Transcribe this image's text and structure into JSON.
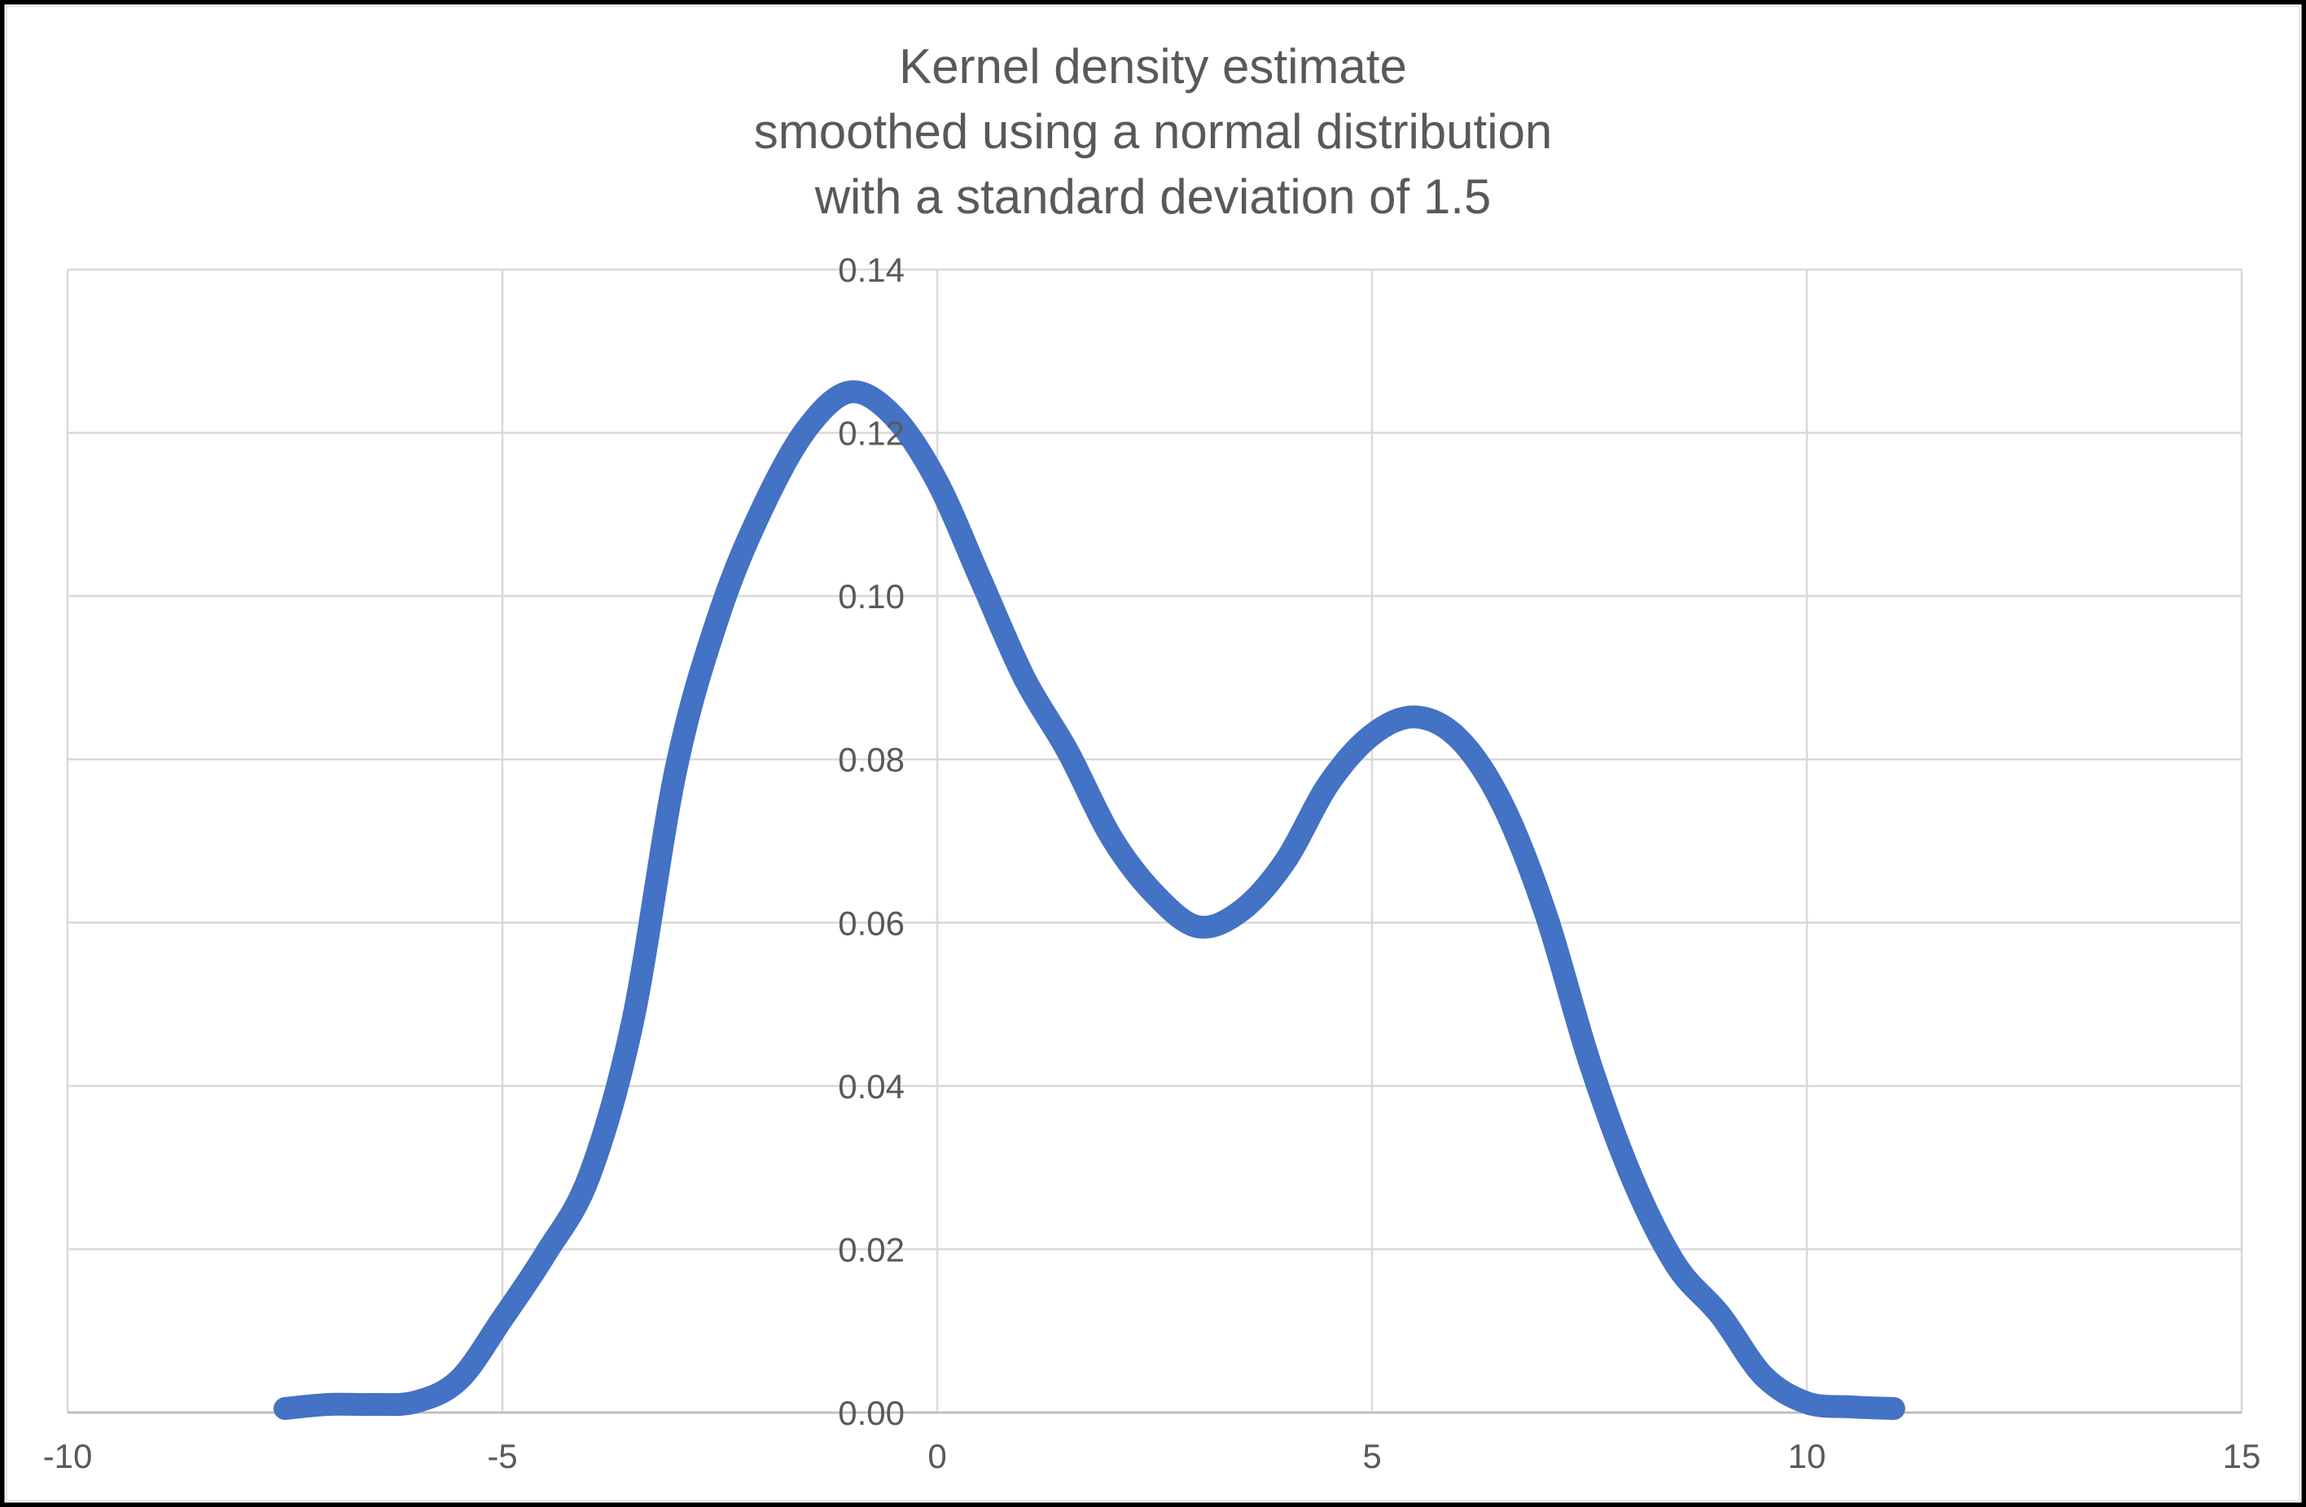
{
  "title": {
    "lines": [
      "Kernel density estimate",
      "smoothed using a normal distribution",
      "with a standard deviation of 1.5"
    ],
    "color": "#595959"
  },
  "chart_data": {
    "type": "line",
    "title": "Kernel density estimate smoothed using a normal distribution with a standard deviation of 1.5",
    "xlabel": "",
    "ylabel": "",
    "xlim": [
      -10,
      15
    ],
    "ylim": [
      0,
      0.14
    ],
    "x_ticks": [
      -10,
      -5,
      0,
      5,
      10,
      15
    ],
    "x_tick_labels": [
      "-10",
      "-5",
      "0",
      "5",
      "10",
      "15"
    ],
    "y_ticks": [
      0,
      0.02,
      0.04,
      0.06,
      0.08,
      0.1,
      0.12,
      0.14
    ],
    "y_tick_labels": [
      "0.00",
      "0.02",
      "0.04",
      "0.06",
      "0.08",
      "0.10",
      "0.12",
      "0.14"
    ],
    "grid": true,
    "legend": false,
    "series": [
      {
        "name": "Kernel density estimate",
        "color": "#4472C4",
        "stroke_width": 28,
        "points": [
          [
            -7.5,
            0.0005
          ],
          [
            -7.0,
            0.001
          ],
          [
            -6.5,
            0.001
          ],
          [
            -6.0,
            0.0013
          ],
          [
            -5.5,
            0.004
          ],
          [
            -5.0,
            0.0115
          ],
          [
            -4.5,
            0.0195
          ],
          [
            -4.0,
            0.029
          ],
          [
            -3.5,
            0.048
          ],
          [
            -3.0,
            0.079
          ],
          [
            -2.5,
            0.098
          ],
          [
            -2.0,
            0.111
          ],
          [
            -1.5,
            0.1205
          ],
          [
            -1.0,
            0.125
          ],
          [
            -0.5,
            0.122
          ],
          [
            0.0,
            0.114
          ],
          [
            0.5,
            0.102
          ],
          [
            1.0,
            0.09
          ],
          [
            1.5,
            0.081
          ],
          [
            2.0,
            0.0705
          ],
          [
            2.5,
            0.0635
          ],
          [
            3.0,
            0.0595
          ],
          [
            3.5,
            0.0615
          ],
          [
            4.0,
            0.0675
          ],
          [
            4.5,
            0.077
          ],
          [
            5.0,
            0.083
          ],
          [
            5.5,
            0.0852
          ],
          [
            6.0,
            0.0825
          ],
          [
            6.5,
            0.0745
          ],
          [
            7.0,
            0.061
          ],
          [
            7.5,
            0.043
          ],
          [
            8.0,
            0.0285
          ],
          [
            8.5,
            0.018
          ],
          [
            9.0,
            0.012
          ],
          [
            9.5,
            0.0045
          ],
          [
            10.0,
            0.0012
          ],
          [
            10.5,
            0.0007
          ],
          [
            11.0,
            0.0005
          ]
        ]
      }
    ]
  },
  "style": {
    "gridline_color": "#D9D9D9",
    "axis_line_color": "#BFBFBF",
    "tick_label_color": "#595959",
    "plot_background": "#FFFFFF",
    "outer_border_color": "#000000",
    "inner_border_color": "#E8E8E8"
  }
}
